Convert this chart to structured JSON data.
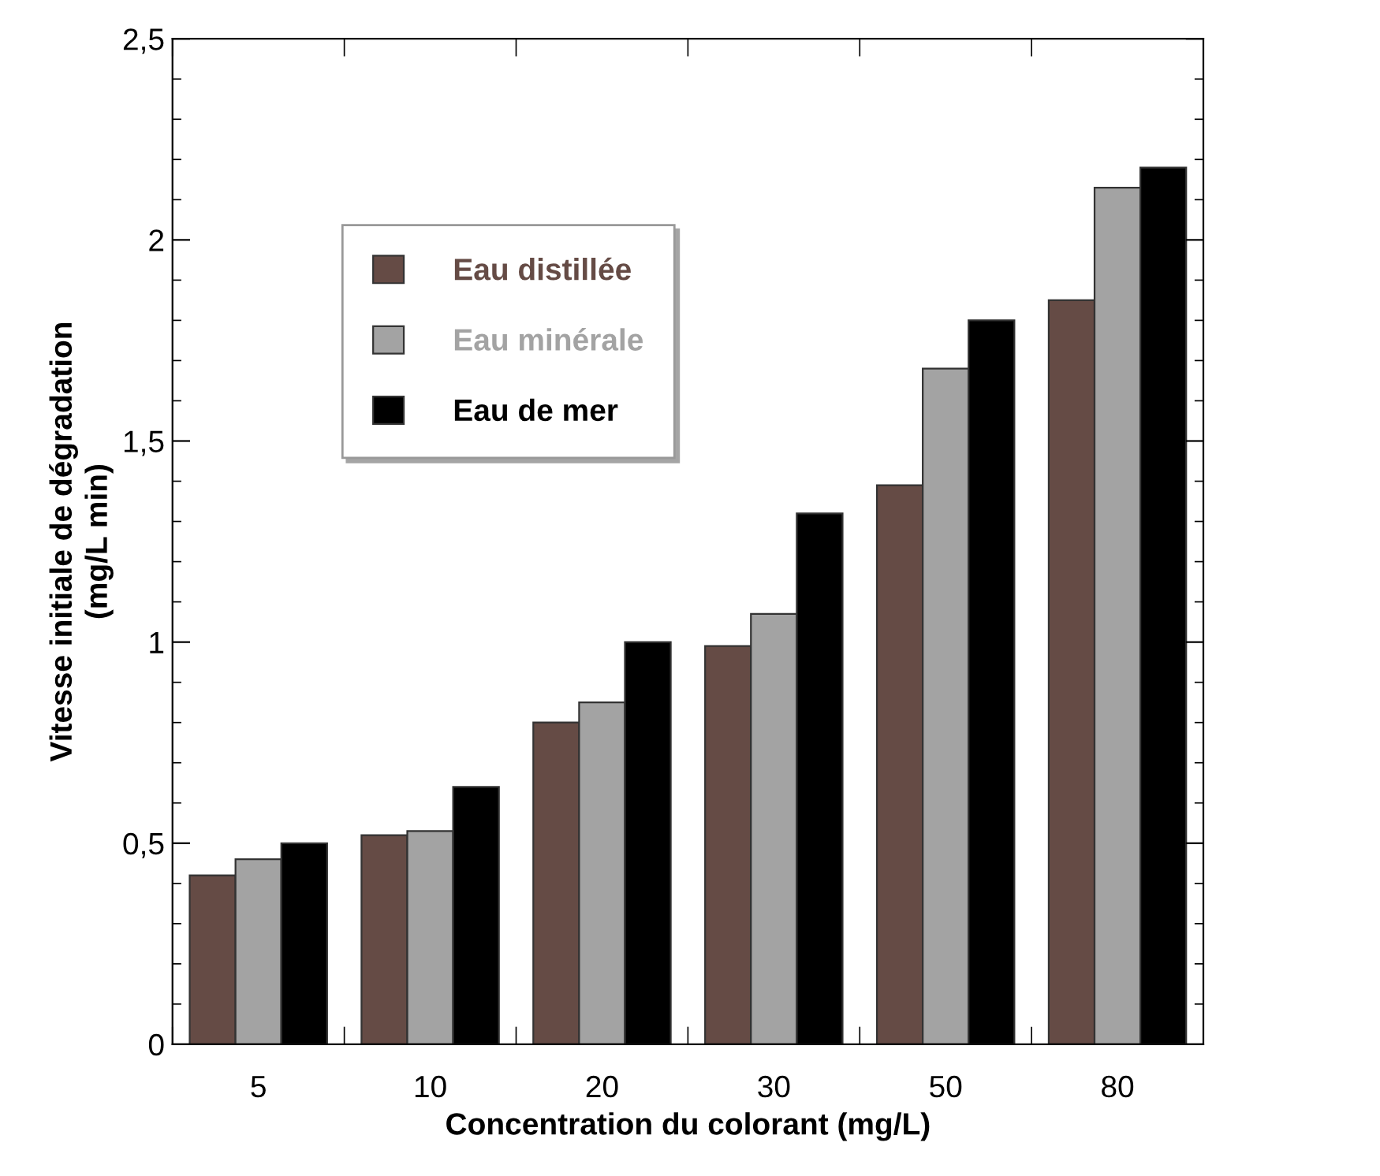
{
  "chart_data": {
    "type": "bar",
    "xlabel": "Concentration du colorant (mg/L)",
    "ylabel": "Vitesse initiale de dégradation\n(mg/L min)",
    "categories": [
      "5",
      "10",
      "20",
      "30",
      "50",
      "80"
    ],
    "series": [
      {
        "name": "Eau distillée",
        "color": "#654b45",
        "values": [
          0.42,
          0.52,
          0.8,
          0.99,
          1.39,
          1.85
        ]
      },
      {
        "name": "Eau minérale",
        "color": "#a3a3a3",
        "values": [
          0.46,
          0.53,
          0.85,
          1.07,
          1.68,
          2.13
        ]
      },
      {
        "name": "Eau de mer",
        "color": "#000000",
        "values": [
          0.5,
          0.64,
          1.0,
          1.32,
          1.8,
          2.18
        ]
      }
    ],
    "ylim": [
      0,
      2.5
    ],
    "yticks": [
      0,
      {
        "value": 0.5,
        "label": "0,5"
      },
      1,
      {
        "value": 1.5,
        "label": "1,5"
      },
      2,
      {
        "value": 2.5,
        "label": "2,5"
      }
    ],
    "grid": false,
    "legend": "top left"
  }
}
